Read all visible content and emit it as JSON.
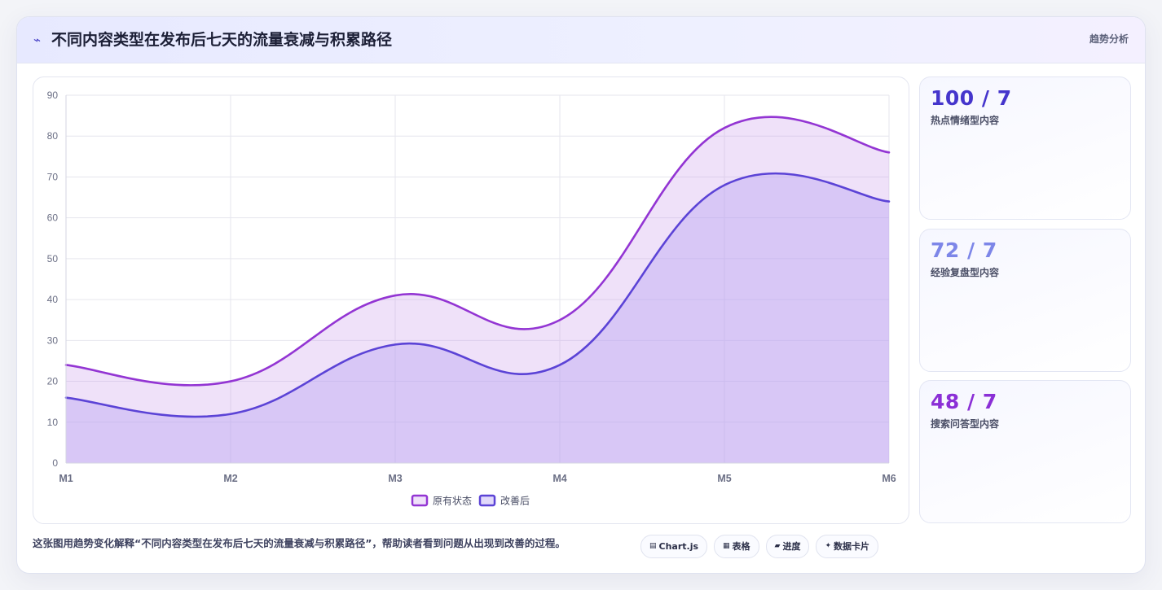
{
  "header": {
    "icon": "trend-icon",
    "icon_glyph": "⌁",
    "title": "不同内容类型在发布后七天的流量衰减与积累路径",
    "tag": "趋势分析"
  },
  "chart_data": {
    "type": "area",
    "categories": [
      "M1",
      "M2",
      "M3",
      "M4",
      "M5",
      "M6"
    ],
    "series": [
      {
        "name": "原有状态",
        "values": [
          24,
          20,
          41,
          35,
          82,
          76
        ],
        "color": "#9335d3",
        "fill": "rgba(196, 148, 232, 0.28)"
      },
      {
        "name": "改善后",
        "values": [
          16,
          12,
          29,
          24,
          68,
          64
        ],
        "color": "#5b43d6",
        "fill": "rgba(184, 164, 242, 0.42)"
      }
    ],
    "ylim": [
      0,
      90
    ],
    "yticks": [
      "0",
      "10",
      "20",
      "30",
      "40",
      "50",
      "60",
      "70",
      "80",
      "90"
    ],
    "grid": true,
    "legend_position": "bottom",
    "title": "",
    "xlabel": "",
    "ylabel": ""
  },
  "stats": [
    {
      "value": "100 / 7",
      "label": "热点情绪型内容",
      "color": "#4535cc"
    },
    {
      "value": "72 / 7",
      "label": "经验复盘型内容",
      "color": "#7d86e8"
    },
    {
      "value": "48 / 7",
      "label": "搜索问答型内容",
      "color": "#8b2fd6"
    }
  ],
  "footer": {
    "description": "这张图用趋势变化解释“不同内容类型在发布后七天的流量衰减与积累路径”，帮助读者看到问题从出现到改善的过程。",
    "chips": [
      {
        "icon": "chart-icon",
        "glyph": "▤",
        "label": "Chart.js"
      },
      {
        "icon": "table-icon",
        "glyph": "▦",
        "label": "表格"
      },
      {
        "icon": "progress-icon",
        "glyph": "▰",
        "label": "进度"
      },
      {
        "icon": "sparkle-icon",
        "glyph": "✦",
        "label": "数据卡片"
      }
    ]
  }
}
